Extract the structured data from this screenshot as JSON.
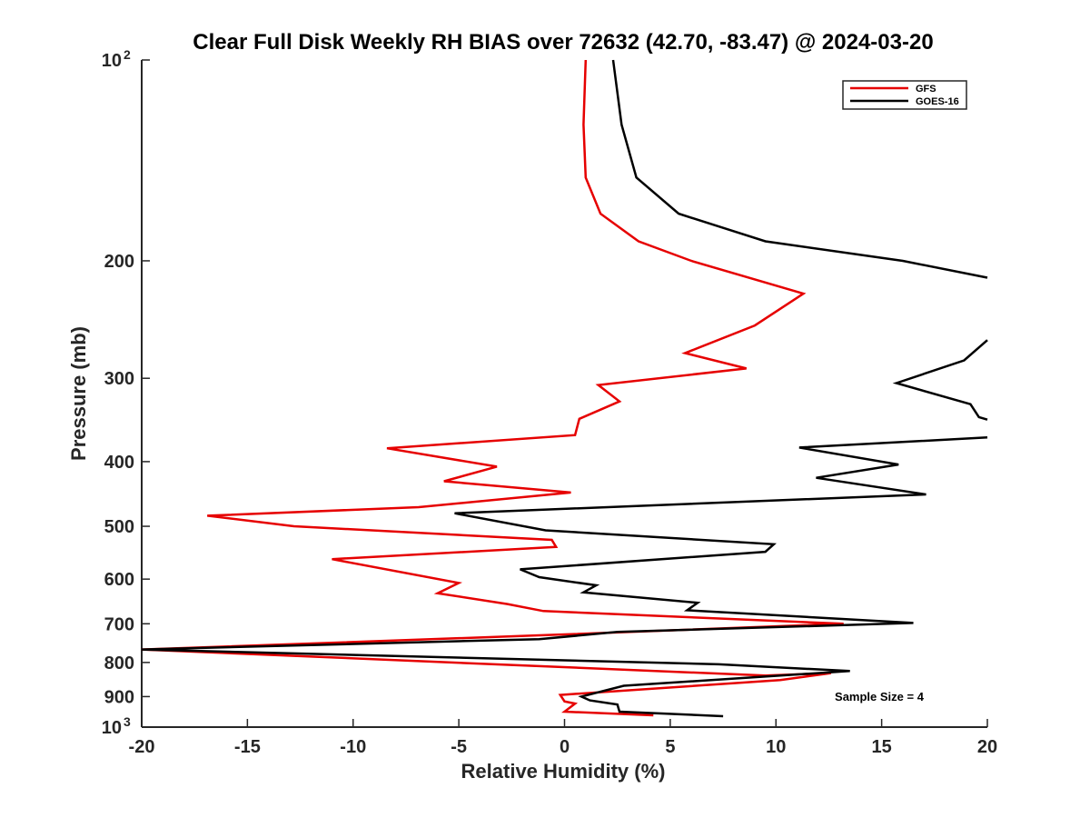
{
  "chart_data": {
    "type": "line",
    "title": "Clear Full Disk Weekly RH BIAS over 72632 (42.70, -83.47) @ 2024-03-20",
    "xlabel": "Relative Humidity (%)",
    "ylabel": "Pressure (mb)",
    "xlim": [
      -20,
      20
    ],
    "ylim": [
      100,
      1000
    ],
    "y_scale": "log",
    "y_reversed": true,
    "grid": false,
    "legend_position": "top-right",
    "x_ticks": [
      {
        "value": -20,
        "label": "-20"
      },
      {
        "value": -15,
        "label": "-15"
      },
      {
        "value": -10,
        "label": "-10"
      },
      {
        "value": -5,
        "label": "-5"
      },
      {
        "value": 0,
        "label": "0"
      },
      {
        "value": 5,
        "label": "5"
      },
      {
        "value": 10,
        "label": "10"
      },
      {
        "value": 15,
        "label": "15"
      },
      {
        "value": 20,
        "label": "20"
      }
    ],
    "y_ticks": [
      {
        "value": 100,
        "label": "10",
        "sup": "2"
      },
      {
        "value": 200,
        "label": "200"
      },
      {
        "value": 300,
        "label": "300"
      },
      {
        "value": 400,
        "label": "400"
      },
      {
        "value": 500,
        "label": "500"
      },
      {
        "value": 600,
        "label": "600"
      },
      {
        "value": 700,
        "label": "700"
      },
      {
        "value": 800,
        "label": "800"
      },
      {
        "value": 900,
        "label": "900"
      },
      {
        "value": 1000,
        "label": "10",
        "sup": "3"
      }
    ],
    "annotation": "Sample Size = 4",
    "series": [
      {
        "name": "GFS",
        "color": "#e60000",
        "points": [
          {
            "x": 1.0,
            "y": 100
          },
          {
            "x": 0.9,
            "y": 125
          },
          {
            "x": 1.0,
            "y": 150
          },
          {
            "x": 1.7,
            "y": 170
          },
          {
            "x": 3.5,
            "y": 187
          },
          {
            "x": 6.0,
            "y": 200
          },
          {
            "x": 11.3,
            "y": 224
          },
          {
            "x": 9.0,
            "y": 250
          },
          {
            "x": 5.7,
            "y": 275
          },
          {
            "x": 8.6,
            "y": 290
          },
          {
            "x": 1.6,
            "y": 307
          },
          {
            "x": 2.6,
            "y": 325
          },
          {
            "x": 0.7,
            "y": 345
          },
          {
            "x": 0.5,
            "y": 365
          },
          {
            "x": -8.4,
            "y": 382
          },
          {
            "x": -3.2,
            "y": 407
          },
          {
            "x": -5.7,
            "y": 428
          },
          {
            "x": 0.3,
            "y": 445
          },
          {
            "x": -6.9,
            "y": 468
          },
          {
            "x": -16.9,
            "y": 482
          },
          {
            "x": -12.8,
            "y": 500
          },
          {
            "x": -0.6,
            "y": 524
          },
          {
            "x": -0.4,
            "y": 537
          },
          {
            "x": -11.0,
            "y": 560
          },
          {
            "x": -5.0,
            "y": 608
          },
          {
            "x": -6.0,
            "y": 630
          },
          {
            "x": -2.7,
            "y": 654
          },
          {
            "x": -1.0,
            "y": 670
          },
          {
            "x": 13.2,
            "y": 700
          },
          {
            "x": -0.9,
            "y": 728
          },
          {
            "x": -20.0,
            "y": 765
          },
          {
            "x": 9.5,
            "y": 837
          },
          {
            "x": 12.6,
            "y": 830
          },
          {
            "x": 10.2,
            "y": 850
          },
          {
            "x": -0.2,
            "y": 895
          },
          {
            "x": 0.0,
            "y": 915
          },
          {
            "x": 0.5,
            "y": 922
          },
          {
            "x": 0.0,
            "y": 948
          },
          {
            "x": 4.2,
            "y": 960
          }
        ]
      },
      {
        "name": "GOES-16",
        "color": "#000000",
        "points": [
          {
            "x": 2.3,
            "y": 100
          },
          {
            "x": 2.7,
            "y": 125
          },
          {
            "x": 3.4,
            "y": 150
          },
          {
            "x": 5.4,
            "y": 170
          },
          {
            "x": 9.5,
            "y": 187
          },
          {
            "x": 16.0,
            "y": 200
          },
          {
            "x": 20.0,
            "y": 212
          },
          {
            "x": null,
            "y": null
          },
          {
            "x": 20.0,
            "y": 263
          },
          {
            "x": 18.9,
            "y": 282
          },
          {
            "x": 15.7,
            "y": 305
          },
          {
            "x": 19.2,
            "y": 328
          },
          {
            "x": 19.6,
            "y": 343
          },
          {
            "x": 20.0,
            "y": 346
          },
          {
            "x": null,
            "y": null
          },
          {
            "x": 20.0,
            "y": 368
          },
          {
            "x": 11.1,
            "y": 381
          },
          {
            "x": 15.8,
            "y": 404
          },
          {
            "x": 11.9,
            "y": 423
          },
          {
            "x": 17.1,
            "y": 448
          },
          {
            "x": -5.2,
            "y": 478
          },
          {
            "x": -0.9,
            "y": 507
          },
          {
            "x": 9.9,
            "y": 532
          },
          {
            "x": 9.5,
            "y": 546
          },
          {
            "x": -2.1,
            "y": 580
          },
          {
            "x": -1.2,
            "y": 596
          },
          {
            "x": 1.5,
            "y": 613
          },
          {
            "x": 0.9,
            "y": 628
          },
          {
            "x": 6.3,
            "y": 651
          },
          {
            "x": 5.8,
            "y": 668
          },
          {
            "x": 16.5,
            "y": 698
          },
          {
            "x": 2.5,
            "y": 720
          },
          {
            "x": -1.2,
            "y": 738
          },
          {
            "x": -20.0,
            "y": 765
          },
          {
            "x": 7.3,
            "y": 805
          },
          {
            "x": 13.5,
            "y": 824
          },
          {
            "x": 2.8,
            "y": 867
          },
          {
            "x": 0.8,
            "y": 900
          },
          {
            "x": 1.2,
            "y": 912
          },
          {
            "x": 2.5,
            "y": 925
          },
          {
            "x": 2.6,
            "y": 948
          },
          {
            "x": 7.5,
            "y": 963
          }
        ]
      }
    ]
  }
}
